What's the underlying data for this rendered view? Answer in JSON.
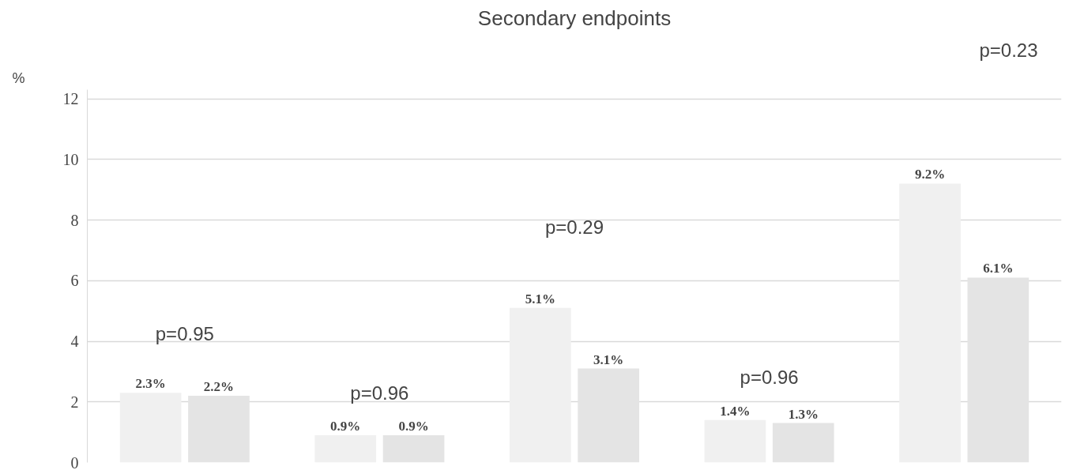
{
  "chart_data": {
    "type": "bar",
    "title": "Secondary endpoints",
    "categories": [
      null,
      null,
      null,
      null,
      null
    ],
    "series": [
      {
        "color": "#f0f0f0",
        "values": [
          2.3,
          0.9,
          5.1,
          1.4,
          9.2
        ],
        "value_labels": [
          "2.3%",
          "0.9%",
          "5.1%",
          "1.4%",
          "9.2%"
        ]
      },
      {
        "color": "#e4e4e4",
        "values": [
          2.2,
          0.9,
          3.1,
          1.3,
          6.1
        ],
        "value_labels": [
          "2.2%",
          "0.9%",
          "3.1%",
          "1.3%",
          "6.1%"
        ]
      }
    ],
    "annotations": [
      "%",
      "p=0.95",
      "p=0.96",
      "p=0.29",
      "p=0.96",
      "p=0.23"
    ],
    "ylim": [
      0,
      12.3
    ],
    "yticks": [
      0,
      2,
      4,
      6,
      8,
      10,
      12
    ],
    "grid": "y",
    "tick_labels": "y"
  }
}
